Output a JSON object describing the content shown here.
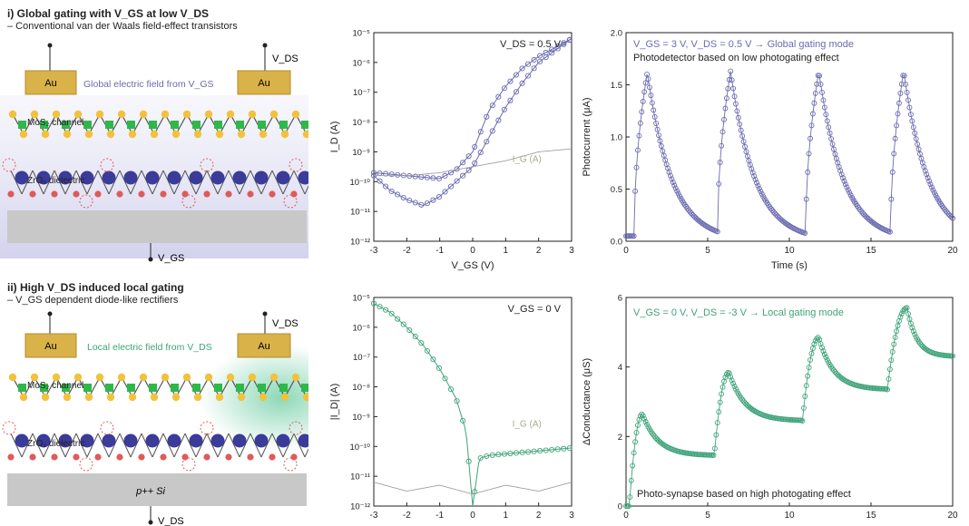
{
  "panel_i": {
    "title": "i) Global gating with V_GS at low V_DS",
    "subtitle": "– Conventional van der Waals field-effect transistors",
    "au_left": "Au",
    "au_right": "Au",
    "field_text": "Global electric field from V_GS",
    "channel": "MoS₂ channel",
    "dielectric": "ZrO₂ dielectric",
    "vds": "V_DS",
    "vgs": "V_GS"
  },
  "panel_ii": {
    "title": "ii) High V_DS induced local gating",
    "subtitle": "– V_GS dependent diode-like rectifiers",
    "au_left": "Au",
    "au_right": "Au",
    "field_text": "Local electric field from V_DS",
    "channel": "MoS₂ channel",
    "dielectric": "ZrO₂ dielectric",
    "substrate": "p++ Si",
    "vds": "V_DS",
    "vgs": "V_DS"
  },
  "colors": {
    "purple": "#6b6bb0",
    "teal": "#3fa37a",
    "gray": "#a0a0a0",
    "au": "#d9b24a",
    "mo": "#2fb84a",
    "s": "#f2c23c",
    "zr": "#3b3b9a",
    "o": "#e05a5a"
  },
  "chart_data": [
    {
      "type": "line",
      "id": "transfer_low_vds",
      "annotation": "V_DS = 0.5 V",
      "xlabel": "V_GS (V)",
      "ylabel": "I_D (A)",
      "xlim": [
        -3,
        3
      ],
      "ylim_log10": [
        -12,
        -5
      ],
      "xticks": [
        "-3",
        "-2",
        "-1",
        "0",
        "1",
        "2",
        "3"
      ],
      "yticks": [
        "10⁻¹²",
        "10⁻¹¹",
        "10⁻¹⁰",
        "10⁻⁹",
        "10⁻⁸",
        "10⁻⁷",
        "10⁻⁶",
        "10⁻⁵"
      ],
      "gate_label": "I_G (A)",
      "series": [
        {
          "color": "purple",
          "x": [
            -3,
            -2.5,
            -2,
            -1.5,
            -1,
            -0.5,
            0,
            0.5,
            1,
            1.5,
            2,
            2.5,
            3
          ],
          "logy": [
            -9.7,
            -9.75,
            -9.8,
            -9.85,
            -9.9,
            -9.6,
            -9.0,
            -7.6,
            -6.8,
            -6.2,
            -5.8,
            -5.5,
            -5.2
          ]
        },
        {
          "color": "purple",
          "x": [
            -3,
            -2.5,
            -2,
            -1.5,
            -1,
            -0.5,
            0,
            0.5,
            1,
            1.5,
            2,
            2.5,
            3
          ],
          "logy": [
            -9.8,
            -10.3,
            -10.6,
            -10.8,
            -10.5,
            -10.0,
            -9.5,
            -8.5,
            -7.5,
            -6.7,
            -6.0,
            -5.6,
            -5.2
          ]
        },
        {
          "color": "gray",
          "x": [
            -3,
            -2,
            -1,
            0,
            1,
            2,
            3
          ],
          "logy": [
            -9.8,
            -9.8,
            -9.7,
            -9.5,
            -9.3,
            -9.0,
            -8.9
          ]
        }
      ]
    },
    {
      "type": "line",
      "id": "photocurrent_global",
      "annotation_1": "V_GS = 3 V, V_DS = 0.5 V → Global gating mode",
      "annotation_2": "Photodetector based on low photogating effect",
      "xlabel": "Time (s)",
      "ylabel": "Photocurrent (μA)",
      "xlim": [
        0,
        20
      ],
      "ylim": [
        0,
        2.0
      ],
      "xticks": [
        "0",
        "5",
        "10",
        "15",
        "20"
      ],
      "yticks": [
        "0.0",
        "0.5",
        "1.0",
        "1.5",
        "2.0"
      ],
      "pulses": [
        {
          "on": 0.5,
          "off": 1.3,
          "peak": 1.62
        },
        {
          "on": 5.6,
          "off": 6.4,
          "peak": 1.63
        },
        {
          "on": 11.0,
          "off": 11.8,
          "peak": 1.63
        },
        {
          "on": 16.2,
          "off": 17.0,
          "peak": 1.63
        }
      ],
      "baseline": 0.05,
      "decay_tau": 1.5
    },
    {
      "type": "line",
      "id": "transfer_high_vds",
      "annotation": "V_GS = 0 V",
      "xlabel": "",
      "ylabel": "|I_D| (A)",
      "xlim": [
        -3,
        3
      ],
      "ylim_log10": [
        -12,
        -5
      ],
      "xticks": [
        "-3",
        "-2",
        "-1",
        "0",
        "1",
        "2",
        "3"
      ],
      "yticks": [
        "10⁻¹²",
        "10⁻¹¹",
        "10⁻¹⁰",
        "10⁻⁹",
        "10⁻⁸",
        "10⁻⁷",
        "10⁻⁶",
        "10⁻⁵"
      ],
      "gate_label": "I_G (A)",
      "series": [
        {
          "color": "teal",
          "x": [
            -3,
            -2.5,
            -2,
            -1.5,
            -1,
            -0.5,
            -0.2,
            0,
            0.2,
            0.5,
            1,
            2,
            3
          ],
          "logy": [
            -5.2,
            -5.5,
            -6.0,
            -6.6,
            -7.4,
            -8.4,
            -9.5,
            -12,
            -10.4,
            -10.3,
            -10.25,
            -10.15,
            -10.05
          ]
        },
        {
          "color": "gray",
          "x": [
            -3,
            -2,
            -1,
            0,
            1,
            2,
            3
          ],
          "logy": [
            -11.2,
            -11.5,
            -11.3,
            -11.6,
            -11.3,
            -11.5,
            -11.2
          ]
        }
      ]
    },
    {
      "type": "line",
      "id": "conductance_local",
      "annotation_1": "V_GS = 0 V, V_DS = -3 V → Local gating mode",
      "annotation_2": "Photo-synapse based on high photogating effect",
      "xlabel": "",
      "ylabel": "ΔConductance (μS)",
      "xlim": [
        0,
        20
      ],
      "ylim": [
        0,
        6
      ],
      "xticks": [
        "0",
        "5",
        "10",
        "15",
        "20"
      ],
      "yticks": [
        "0",
        "2",
        "4",
        "6"
      ],
      "pulses": [
        {
          "on": 0.2,
          "off": 1.0,
          "start": 0.0,
          "peak": 2.65,
          "tail": 1.45
        },
        {
          "on": 5.4,
          "off": 6.3,
          "start": 1.45,
          "peak": 3.85,
          "tail": 2.45
        },
        {
          "on": 10.8,
          "off": 11.8,
          "start": 2.45,
          "peak": 4.85,
          "tail": 3.35
        },
        {
          "on": 16.0,
          "off": 17.2,
          "start": 3.35,
          "peak": 5.7,
          "tail": 4.3
        }
      ]
    }
  ]
}
